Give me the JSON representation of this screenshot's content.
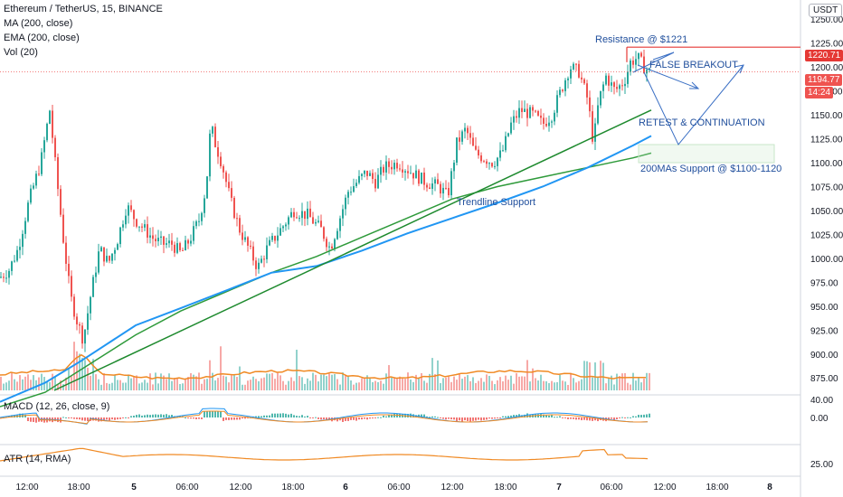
{
  "header": {
    "symbol": "Ethereum / TetherUS, 15, BINANCE",
    "ma": "MA (200, close)",
    "ema": "EMA (200, close)",
    "vol": "Vol (20)",
    "macd": "MACD (12, 26, close, 9)",
    "atr": "ATR (14, RMA)",
    "currency": "USDT"
  },
  "annotations": {
    "resistance": "Resistance @ $1221",
    "false_breakout": "FALSE BREAKOUT",
    "retest": "RETEST & CONTINUATION",
    "ma_support": "200MAs Support @ $1100-1120",
    "trendline": "Trendline Support"
  },
  "badges": {
    "resistance_price": "1220.71",
    "last_price": "1194.77",
    "countdown": "14:24"
  },
  "colors": {
    "up": "#26a69a",
    "down": "#ef5350",
    "ma": "#2e9a3a",
    "ema": "#2196f3",
    "trend": "#1e8a2e",
    "resistance": "#e53935",
    "arrow": "#3a6fc4",
    "vol_ma": "#f08a24",
    "macd": "#2196f3",
    "signal": "#f08a24",
    "atr": "#f08a24"
  },
  "chart_data": {
    "type": "candlestick",
    "symbol": "ETHUSDT",
    "interval": "15",
    "ylim": [
      862,
      1270
    ],
    "y_ticks": [
      "1250.00",
      "1225.00",
      "1200.00",
      "1175.00",
      "1150.00",
      "1125.00",
      "1100.00",
      "1075.00",
      "1050.00",
      "1025.00",
      "1000.00",
      "975.00",
      "950.00",
      "925.00",
      "900.00",
      "875.00"
    ],
    "x_ticks": [
      "12:00",
      "18:00",
      "5",
      "06:00",
      "12:00",
      "18:00",
      "6",
      "06:00",
      "12:00",
      "18:00",
      "7",
      "06:00",
      "12:00",
      "18:00",
      "8"
    ],
    "price_path": [
      [
        0,
        980
      ],
      [
        10,
        988
      ],
      [
        20,
        1010
      ],
      [
        32,
        1060
      ],
      [
        45,
        1100
      ],
      [
        55,
        1155
      ],
      [
        62,
        1090
      ],
      [
        70,
        1020
      ],
      [
        78,
        960
      ],
      [
        85,
        935
      ],
      [
        92,
        915
      ],
      [
        100,
        960
      ],
      [
        110,
        1010
      ],
      [
        120,
        995
      ],
      [
        130,
        1020
      ],
      [
        140,
        1055
      ],
      [
        150,
        1040
      ],
      [
        160,
        1030
      ],
      [
        170,
        1020
      ],
      [
        180,
        1015
      ],
      [
        190,
        1015
      ],
      [
        200,
        1005
      ],
      [
        210,
        1020
      ],
      [
        220,
        1040
      ],
      [
        228,
        1075
      ],
      [
        233,
        1140
      ],
      [
        238,
        1120
      ],
      [
        245,
        1100
      ],
      [
        255,
        1060
      ],
      [
        265,
        1030
      ],
      [
        275,
        1010
      ],
      [
        285,
        990
      ],
      [
        295,
        1010
      ],
      [
        310,
        1030
      ],
      [
        325,
        1050
      ],
      [
        340,
        1045
      ],
      [
        355,
        1030
      ],
      [
        365,
        1010
      ],
      [
        375,
        1040
      ],
      [
        385,
        1070
      ],
      [
        395,
        1080
      ],
      [
        405,
        1090
      ],
      [
        415,
        1080
      ],
      [
        425,
        1095
      ],
      [
        440,
        1100
      ],
      [
        455,
        1090
      ],
      [
        470,
        1080
      ],
      [
        485,
        1075
      ],
      [
        495,
        1065
      ],
      [
        505,
        1120
      ],
      [
        515,
        1135
      ],
      [
        525,
        1110
      ],
      [
        535,
        1105
      ],
      [
        545,
        1100
      ],
      [
        555,
        1110
      ],
      [
        565,
        1140
      ],
      [
        575,
        1155
      ],
      [
        590,
        1150
      ],
      [
        600,
        1140
      ],
      [
        610,
        1150
      ],
      [
        620,
        1175
      ],
      [
        630,
        1200
      ],
      [
        640,
        1195
      ],
      [
        650,
        1165
      ],
      [
        656,
        1120
      ],
      [
        662,
        1165
      ],
      [
        670,
        1190
      ],
      [
        680,
        1175
      ],
      [
        690,
        1185
      ],
      [
        697,
        1205
      ],
      [
        705,
        1210
      ],
      [
        712,
        1200
      ],
      [
        718,
        1195
      ]
    ],
    "ma_200": [
      [
        0,
        845
      ],
      [
        50,
        860
      ],
      [
        100,
        890
      ],
      [
        150,
        920
      ],
      [
        200,
        945
      ],
      [
        250,
        965
      ],
      [
        300,
        985
      ],
      [
        350,
        1002
      ],
      [
        400,
        1022
      ],
      [
        450,
        1042
      ],
      [
        500,
        1062
      ],
      [
        550,
        1075
      ],
      [
        600,
        1085
      ],
      [
        650,
        1095
      ],
      [
        700,
        1105
      ],
      [
        720,
        1110
      ]
    ],
    "ema_200": [
      [
        0,
        850
      ],
      [
        50,
        870
      ],
      [
        90,
        893
      ],
      [
        150,
        930
      ],
      [
        200,
        948
      ],
      [
        260,
        970
      ],
      [
        300,
        985
      ],
      [
        350,
        992
      ],
      [
        400,
        1008
      ],
      [
        450,
        1026
      ],
      [
        500,
        1042
      ],
      [
        550,
        1058
      ],
      [
        600,
        1075
      ],
      [
        650,
        1095
      ],
      [
        700,
        1118
      ],
      [
        720,
        1128
      ]
    ],
    "trendline": [
      [
        60,
        862
      ],
      [
        720,
        1155
      ]
    ],
    "resistance_level": 1220.71,
    "last_price": 1194.77,
    "macd_ylim": [
      -20,
      50
    ],
    "macd_ticks": [
      "40.00",
      "0.00"
    ],
    "atr_ticks": [
      "25.00"
    ]
  }
}
